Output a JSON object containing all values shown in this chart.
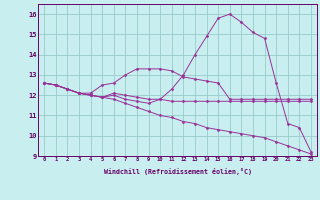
{
  "xlabel": "Windchill (Refroidissement éolien,°C)",
  "bg_color": "#c8eef0",
  "line_color": "#993399",
  "grid_color": "#99cccc",
  "axis_color": "#660066",
  "text_color": "#660066",
  "xlim": [
    -0.5,
    23.5
  ],
  "ylim": [
    9,
    16.5
  ],
  "xticks": [
    0,
    1,
    2,
    3,
    4,
    5,
    6,
    7,
    8,
    9,
    10,
    11,
    12,
    13,
    14,
    15,
    16,
    17,
    18,
    19,
    20,
    21,
    22,
    23
  ],
  "yticks": [
    9,
    10,
    11,
    12,
    13,
    14,
    15,
    16
  ],
  "lines": [
    {
      "x": [
        0,
        1,
        2,
        3,
        4,
        5,
        6,
        7,
        8,
        9,
        10,
        11,
        12,
        13,
        14,
        15,
        16,
        17,
        18,
        19,
        20,
        21,
        22,
        23
      ],
      "y": [
        12.6,
        12.5,
        12.3,
        12.1,
        12.1,
        12.5,
        12.6,
        13.0,
        13.3,
        13.3,
        13.3,
        13.2,
        12.9,
        12.8,
        12.7,
        12.6,
        11.8,
        11.8,
        11.8,
        11.8,
        11.8,
        11.8,
        11.8,
        11.8
      ]
    },
    {
      "x": [
        0,
        1,
        2,
        3,
        4,
        5,
        6,
        7,
        8,
        9,
        10,
        11,
        12,
        13,
        14,
        15,
        16,
        17,
        18,
        19,
        20,
        21,
        22,
        23
      ],
      "y": [
        12.6,
        12.5,
        12.3,
        12.1,
        12.0,
        11.9,
        12.0,
        11.8,
        11.7,
        11.6,
        11.8,
        12.3,
        13.0,
        14.0,
        14.9,
        15.8,
        16.0,
        15.6,
        15.1,
        14.8,
        12.6,
        10.6,
        10.4,
        9.2
      ]
    },
    {
      "x": [
        0,
        1,
        2,
        3,
        4,
        5,
        6,
        7,
        8,
        9,
        10,
        11,
        12,
        13,
        14,
        15,
        16,
        17,
        18,
        19,
        20,
        21,
        22,
        23
      ],
      "y": [
        12.6,
        12.5,
        12.3,
        12.1,
        12.0,
        11.9,
        12.1,
        12.0,
        11.9,
        11.8,
        11.8,
        11.7,
        11.7,
        11.7,
        11.7,
        11.7,
        11.7,
        11.7,
        11.7,
        11.7,
        11.7,
        11.7,
        11.7,
        11.7
      ]
    },
    {
      "x": [
        0,
        1,
        2,
        3,
        4,
        5,
        6,
        7,
        8,
        9,
        10,
        11,
        12,
        13,
        14,
        15,
        16,
        17,
        18,
        19,
        20,
        21,
        22,
        23
      ],
      "y": [
        12.6,
        12.5,
        12.3,
        12.1,
        12.0,
        11.9,
        11.8,
        11.6,
        11.4,
        11.2,
        11.0,
        10.9,
        10.7,
        10.6,
        10.4,
        10.3,
        10.2,
        10.1,
        10.0,
        9.9,
        9.7,
        9.5,
        9.3,
        9.1
      ]
    }
  ]
}
